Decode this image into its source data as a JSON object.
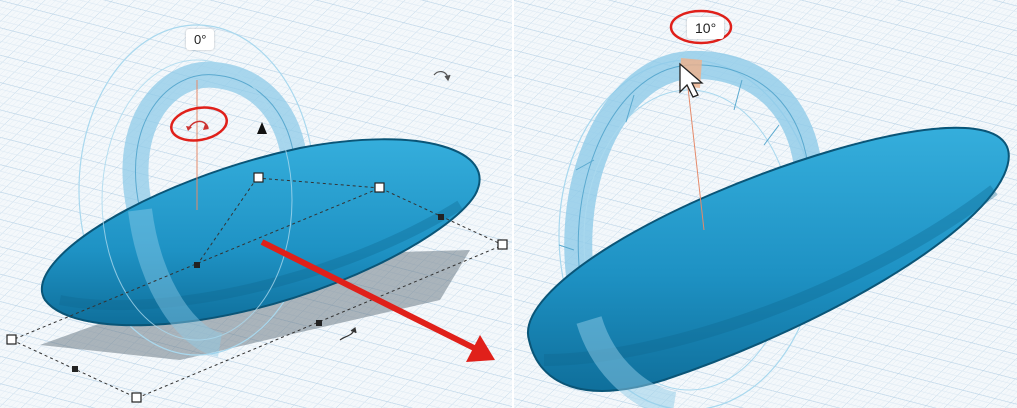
{
  "left_view": {
    "rotation_angle_label": "0°"
  },
  "right_view": {
    "rotation_angle_label": "10°"
  },
  "colors": {
    "workplane_grid": "#b8d2e6",
    "shape_fill": "#1e92c4",
    "shape_dark": "#0f6f9b",
    "shape_outline": "#0a5577",
    "rotation_ring": "#8fcbe8",
    "annotation_red": "#e0201a"
  },
  "icons": [
    "rotate-handle-icon",
    "rotate-arrow-icon",
    "cone-handle-icon",
    "cursor-icon",
    "red-arrow-icon"
  ]
}
